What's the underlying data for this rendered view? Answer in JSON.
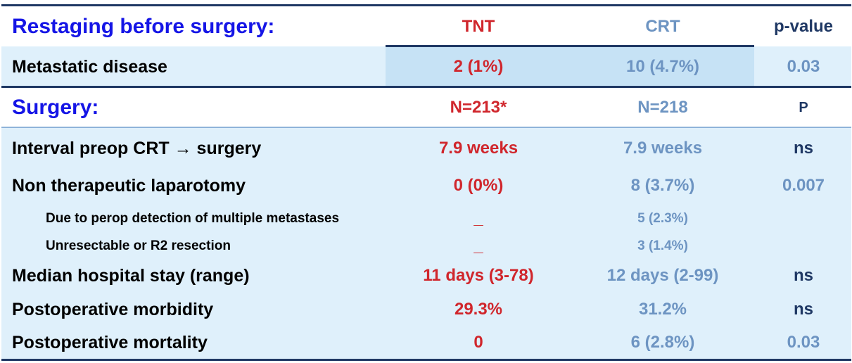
{
  "section1": {
    "title": "Restaging before surgery:",
    "headers": {
      "tnt": "TNT",
      "crt": "CRT",
      "pvalue": "p-value"
    },
    "rows": [
      {
        "label": "Metastatic disease",
        "tnt": "2 (1%)",
        "crt": "10 (4.7%)",
        "p": "0.03"
      }
    ]
  },
  "section2": {
    "title": "Surgery:",
    "headers": {
      "tnt": "N=213*",
      "crt": "N=218",
      "pvalue": "P"
    },
    "rows": [
      {
        "label": "Interval preop CRT → surgery",
        "tnt": "7.9 weeks",
        "crt": "7.9 weeks",
        "p": "ns"
      },
      {
        "label": "Non therapeutic laparotomy",
        "tnt": "0 (0%)",
        "crt": "8 (3.7%)",
        "p": "0.007"
      },
      {
        "label": "Due to perop detection of multiple metastases",
        "tnt": "_",
        "crt": "5 (2.3%)",
        "p": ""
      },
      {
        "label": "Unresectable or R2 resection",
        "tnt": "_",
        "crt": "3 (1.4%)",
        "p": ""
      },
      {
        "label": "Median hospital stay (range)",
        "tnt": "11 days (3-78)",
        "crt": "12 days (2-99)",
        "p": "ns"
      },
      {
        "label": "Postoperative morbidity",
        "tnt": "29.3%",
        "crt": "31.2%",
        "p": "ns"
      },
      {
        "label": "Postoperative mortality",
        "tnt": "0",
        "crt": "6 (2.8%)",
        "p": "0.03"
      }
    ]
  },
  "colors": {
    "tnt": "#d0262c",
    "crt": "#6d94c2",
    "p": "#1f3864",
    "section_title": "#1515e6",
    "band": "#dff0fb"
  }
}
